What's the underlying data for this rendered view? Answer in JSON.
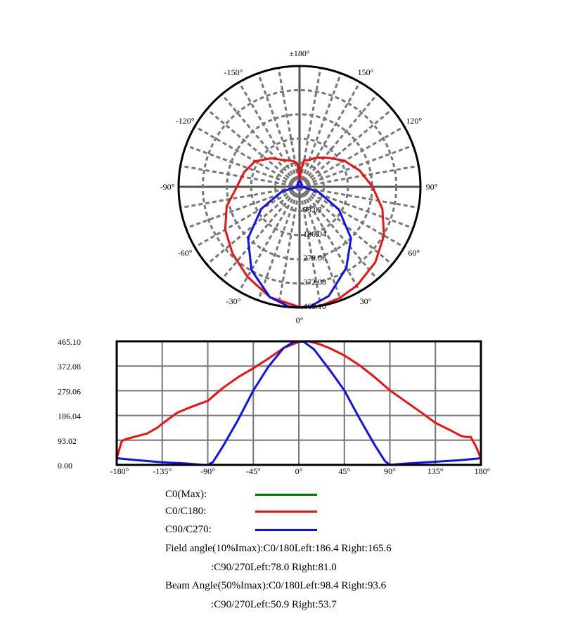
{
  "chart_data": [
    {
      "type": "polar",
      "angle_labels": [
        "0°",
        "30°",
        "60°",
        "90°",
        "120°",
        "150°",
        "±180°",
        "-150°",
        "-120°",
        "-90°",
        "-60°",
        "-30°"
      ],
      "ring_labels": [
        "93.02",
        "186.04",
        "279.06",
        "372.08",
        "465.10"
      ],
      "rmax": 465.1,
      "grid": true,
      "series": [
        {
          "name": "C0/C180",
          "color": "#ee1111",
          "angles": [
            -180,
            -175,
            -170,
            -160,
            -150,
            -140,
            -135,
            -120,
            -105,
            -90,
            -75,
            -60,
            -45,
            -30,
            -15,
            0,
            10,
            20,
            30,
            45,
            60,
            75,
            90,
            105,
            120,
            135,
            150,
            160,
            165,
            170,
            175,
            180
          ],
          "values": [
            25,
            90,
            98,
            108,
            118,
            140,
            155,
            197,
            220,
            241,
            290,
            330,
            364,
            400,
            440,
            463,
            465,
            455,
            440,
            412,
            375,
            330,
            281,
            240,
            200,
            158,
            130,
            110,
            105,
            105,
            70,
            25
          ]
        },
        {
          "name": "C90/C270",
          "color": "#1111ee",
          "angles": [
            -180,
            -160,
            -135,
            -110,
            -95,
            -90,
            -85,
            -75,
            -60,
            -45,
            -30,
            -15,
            -5,
            0,
            5,
            15,
            30,
            45,
            60,
            75,
            85,
            90,
            105,
            135,
            160,
            180
          ],
          "values": [
            25,
            18,
            10,
            5,
            0,
            0,
            10,
            70,
            170,
            280,
            370,
            440,
            463,
            465,
            463,
            435,
            360,
            280,
            175,
            75,
            15,
            0,
            5,
            12,
            18,
            25
          ]
        }
      ]
    },
    {
      "type": "line",
      "xlim": [
        -180,
        180
      ],
      "ylim": [
        0,
        465.1
      ],
      "grid": true,
      "x_ticks": [
        -180,
        -135,
        -90,
        -45,
        0,
        45,
        90,
        135,
        180
      ],
      "x_tick_labels": [
        "-180°",
        "-135°",
        "-90°",
        "-45°",
        "0°",
        "45°",
        "90°",
        "135°",
        "180°"
      ],
      "y_tick_labels": [
        "465.10",
        "372.08",
        "279.06",
        "186.04",
        "93.02",
        "0.00"
      ],
      "y_ticks": [
        465.1,
        372.08,
        279.06,
        186.04,
        93.02,
        0
      ]
    }
  ],
  "legend": [
    {
      "label": "C0(Max):",
      "color": "#007700"
    },
    {
      "label": "C0/C180:",
      "color": "#ee1111"
    },
    {
      "label": "C90/C270:",
      "color": "#1111ee"
    }
  ],
  "info": [
    "Field angle(10%Imax):C0/180Left:186.4 Right:165.6",
    ":C90/270Left:78.0 Right:81.0",
    "Beam Angle(50%Imax):C0/180Left:98.4 Right:93.6",
    ":C90/270Left:50.9 Right:53.7"
  ]
}
